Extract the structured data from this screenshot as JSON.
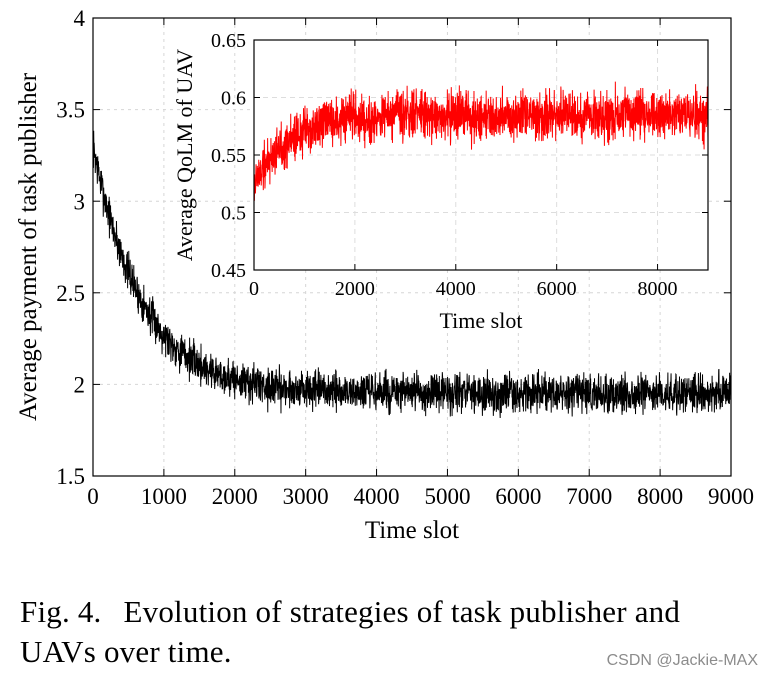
{
  "chart_data": [
    {
      "id": "main",
      "type": "line",
      "title": "",
      "xlabel": "Time slot",
      "ylabel": "Average payment of task publisher",
      "xlim": [
        0,
        9000
      ],
      "ylim": [
        1.5,
        4
      ],
      "xticks": [
        0,
        1000,
        2000,
        3000,
        4000,
        5000,
        6000,
        7000,
        8000,
        9000
      ],
      "yticks": [
        1.5,
        2,
        2.5,
        3,
        3.5,
        4
      ],
      "xtick_labels": [
        "0",
        "1000",
        "2000",
        "3000",
        "4000",
        "5000",
        "6000",
        "7000",
        "8000",
        "9000"
      ],
      "ytick_labels": [
        "1.5",
        "2",
        "2.5",
        "3",
        "3.5",
        "4"
      ],
      "grid": true,
      "series": [
        {
          "name": "Average payment of task publisher",
          "color": "#000000",
          "trend": {
            "start": 3.3,
            "end": 1.95,
            "decay_constant": 700
          },
          "noise_band": 0.08,
          "x": [
            0,
            500,
            1000,
            1500,
            2000,
            2500,
            3000,
            4000,
            5000,
            6000,
            7000,
            8000,
            9000
          ],
          "values": [
            3.3,
            2.62,
            2.25,
            2.08,
            2.0,
            1.97,
            1.96,
            1.95,
            1.95,
            1.96,
            1.95,
            1.95,
            1.94
          ]
        }
      ]
    },
    {
      "id": "inset",
      "type": "line",
      "title": "",
      "xlabel": "Time slot",
      "ylabel": "Average QoLM of UAV",
      "xlim": [
        0,
        9000
      ],
      "ylim": [
        0.45,
        0.65
      ],
      "xticks": [
        0,
        2000,
        4000,
        6000,
        8000
      ],
      "yticks": [
        0.45,
        0.5,
        0.55,
        0.6,
        0.65
      ],
      "xtick_labels": [
        "0",
        "2000",
        "4000",
        "6000",
        "8000"
      ],
      "ytick_labels": [
        "0.45",
        "0.5",
        "0.55",
        "0.6",
        "0.65"
      ],
      "grid": true,
      "series": [
        {
          "name": "Average QoLM of UAV",
          "color": "#ff0000",
          "trend": {
            "start": 0.525,
            "end": 0.585,
            "decay_constant": 700
          },
          "noise_band": 0.016,
          "x": [
            0,
            500,
            1000,
            1500,
            2000,
            3000,
            4000,
            5000,
            6000,
            7000,
            8000,
            9000
          ],
          "values": [
            0.525,
            0.555,
            0.57,
            0.578,
            0.582,
            0.585,
            0.586,
            0.586,
            0.585,
            0.585,
            0.584,
            0.585
          ]
        }
      ]
    }
  ],
  "caption": {
    "label": "Fig. 4.",
    "text": "Evolution of strategies of task publisher and UAVs over time."
  },
  "watermark": "CSDN @Jackie-MAX"
}
